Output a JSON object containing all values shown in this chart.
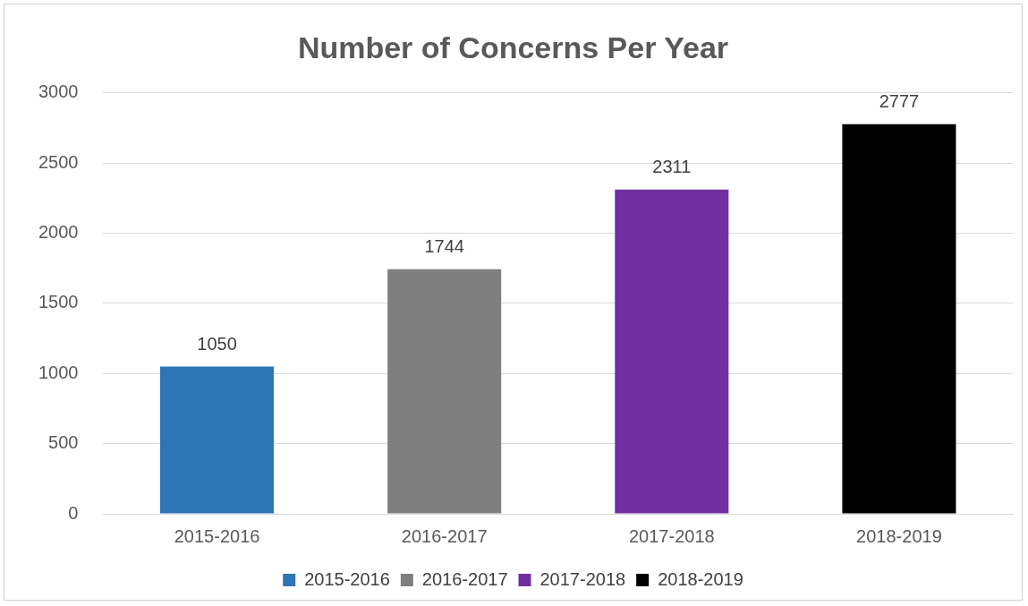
{
  "chart_data": {
    "type": "bar",
    "title": "Number of Concerns Per Year",
    "categories": [
      "2015-2016",
      "2016-2017",
      "2017-2018",
      "2018-2019"
    ],
    "series": [
      {
        "name": "2015-2016",
        "color": "#2e75b6",
        "values": [
          1050,
          null,
          null,
          null
        ]
      },
      {
        "name": "2016-2017",
        "color": "#7f7f7f",
        "values": [
          null,
          1744,
          null,
          null
        ]
      },
      {
        "name": "2017-2018",
        "color": "#7030a0",
        "values": [
          null,
          null,
          2311,
          null
        ]
      },
      {
        "name": "2018-2019",
        "color": "#000000",
        "values": [
          null,
          null,
          null,
          2777
        ]
      }
    ],
    "ylim": [
      0,
      3000
    ],
    "yticks": [
      0,
      500,
      1000,
      1500,
      2000,
      2500,
      3000
    ],
    "grid": "y",
    "legend": "bottom",
    "data_labels": true
  }
}
